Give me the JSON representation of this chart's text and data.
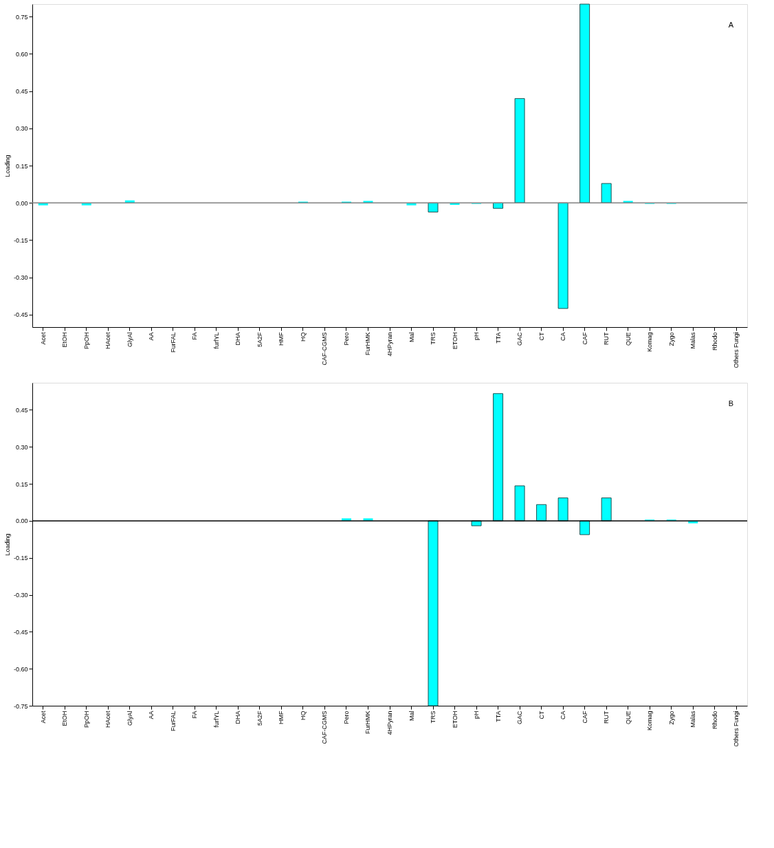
{
  "chart_data": [
    {
      "type": "bar",
      "ylabel": "Loading",
      "annotations": [
        "A"
      ],
      "grid": false,
      "categories": [
        "Acet",
        "EtOH",
        "PpOH",
        "HAcet",
        "GlyAl",
        "AA",
        "FurFAL",
        "FA",
        "furfYL",
        "DHA",
        "5A2F",
        "HMF",
        "HQ",
        "CAF-CGMS",
        "Pero",
        "FurHMK",
        "4HPyran",
        "Mal",
        "TRS",
        "ETOH",
        "pH",
        "TTA",
        "GAC",
        "CT",
        "CA",
        "CAF",
        "RUT",
        "QUE",
        "Komag",
        "Zygo",
        "Malas",
        "Rhodo",
        "Others Fungi"
      ],
      "series": [
        {
          "color": "#00ffff",
          "values": [
            -0.01,
            null,
            -0.01,
            null,
            0.01,
            null,
            null,
            null,
            null,
            null,
            null,
            null,
            0.005,
            null,
            0.005,
            0.008,
            null,
            -0.01,
            -0.037,
            -0.008,
            -0.004,
            -0.022,
            0.42,
            null,
            -0.425,
            0.8,
            0.078,
            0.008,
            -0.004,
            -0.004,
            null,
            null,
            null
          ]
        }
      ],
      "ylim": [
        -0.5,
        0.8
      ],
      "yticks": [
        {
          "value": -0.45,
          "label": "-0.45"
        },
        {
          "value": -0.3,
          "label": "-0.30"
        },
        {
          "value": -0.15,
          "label": "-0.15"
        },
        {
          "value": 0,
          "label": "0.00"
        },
        {
          "value": 0.15,
          "label": "0.15"
        },
        {
          "value": 0.3,
          "label": "0.30"
        },
        {
          "value": 0.45,
          "label": "0.45"
        },
        {
          "value": 0.6,
          "label": "0.60"
        },
        {
          "value": 0.75,
          "label": "0.75"
        }
      ],
      "ref_lines": [
        {
          "axis": "y",
          "value": 0,
          "color": "#808080"
        }
      ]
    },
    {
      "type": "bar",
      "ylabel": "Loading",
      "annotations": [
        "B"
      ],
      "grid": false,
      "categories": [
        "Acet",
        "EtOH",
        "PpOH",
        "HAcet",
        "GlyAl",
        "AA",
        "FurFAL",
        "FA",
        "furfYL",
        "DHA",
        "5A2F",
        "HMF",
        "HQ",
        "CAF-CGMS",
        "Pero",
        "FurHMK",
        "4HPyran",
        "Mal",
        "TRS",
        "ETOH",
        "pH",
        "TTA",
        "GAC",
        "CT",
        "CA",
        "CAF",
        "RUT",
        "QUE",
        "Komag",
        "Zygo",
        "Malas",
        "Rhodo",
        "Others Fungi"
      ],
      "series": [
        {
          "color": "#00ffff",
          "values": [
            null,
            null,
            null,
            null,
            null,
            null,
            null,
            null,
            null,
            null,
            null,
            null,
            null,
            null,
            0.01,
            0.01,
            null,
            null,
            -0.75,
            null,
            -0.02,
            0.516,
            0.142,
            0.066,
            0.093,
            -0.056,
            0.093,
            null,
            0.005,
            0.005,
            -0.01,
            null,
            null
          ]
        }
      ],
      "ylim": [
        -0.75,
        0.56
      ],
      "yticks": [
        {
          "value": -0.75,
          "label": "-0.75"
        },
        {
          "value": -0.6,
          "label": "-0.60"
        },
        {
          "value": -0.45,
          "label": "-0.45"
        },
        {
          "value": -0.3,
          "label": "-0.30"
        },
        {
          "value": -0.15,
          "label": "-0.15"
        },
        {
          "value": 0,
          "label": "0.00"
        },
        {
          "value": 0.15,
          "label": "0.15"
        },
        {
          "value": 0.3,
          "label": "0.30"
        },
        {
          "value": 0.45,
          "label": "0.45"
        }
      ],
      "ref_lines": [
        {
          "axis": "y",
          "value": 0,
          "color": "#000000"
        }
      ]
    }
  ]
}
